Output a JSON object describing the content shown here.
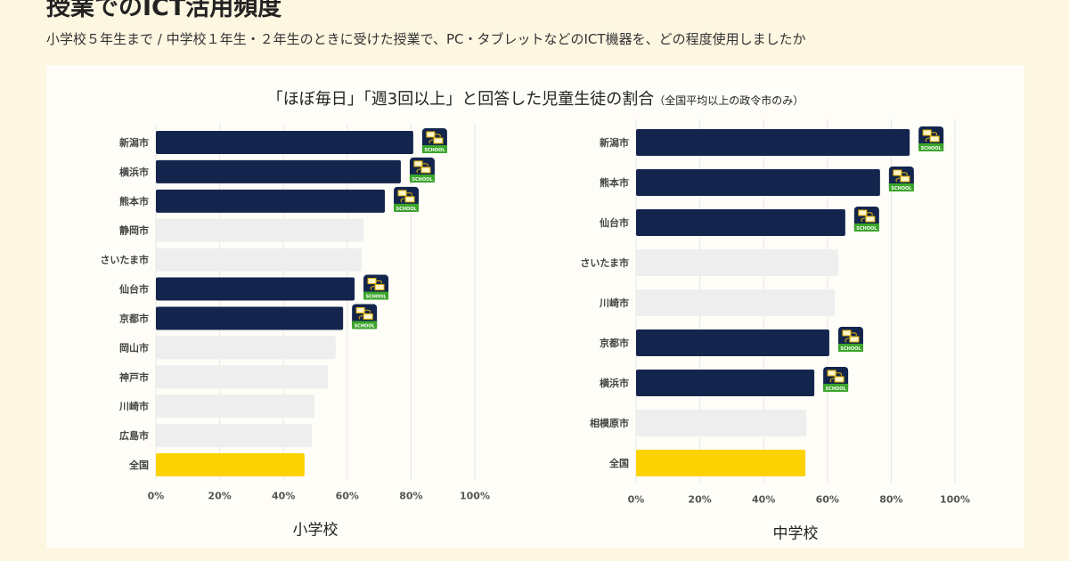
{
  "header": {
    "title": "授業でのICT活用頻度",
    "subtitle": "小学校５年生まで / 中学校１年生・２年生のときに受けた授業で、PC・タブレットなどのICT機器を、どの程度使用しましたか"
  },
  "colors": {
    "highlight": "#14254d",
    "other": "#eeeeee",
    "national": "#fcd200",
    "background": "#fdf6e1",
    "badge_green": "#3aa52a"
  },
  "icon": {
    "name": "school-ict-badge-icon",
    "text": "SCHOOL"
  },
  "chart_data": {
    "title": "「ほぼ毎日」「週3回以上」と回答した児童生徒の割合",
    "title_note": "（全国平均以上の政令市のみ）",
    "charts": [
      {
        "type": "bar",
        "orientation": "horizontal",
        "xlabel": "小学校",
        "xlim": [
          0,
          100
        ],
        "ticks": [
          "0%",
          "20%",
          "40%",
          "60%",
          "80%",
          "100%"
        ],
        "grid": true,
        "categories": [
          "新潟市",
          "横浜市",
          "熊本市",
          "静岡市",
          "さいたま市",
          "仙台市",
          "京都市",
          "岡山市",
          "神戸市",
          "川崎市",
          "広島市",
          "全国"
        ],
        "values": [
          80.7,
          76.8,
          71.8,
          65.1,
          64.5,
          62.3,
          58.7,
          56.4,
          53.9,
          49.7,
          48.9,
          46.6
        ],
        "highlighted": [
          true,
          true,
          true,
          false,
          false,
          true,
          true,
          false,
          false,
          false,
          false,
          false
        ]
      },
      {
        "type": "bar",
        "orientation": "horizontal",
        "xlabel": "中学校",
        "xlim": [
          0,
          100
        ],
        "ticks": [
          "0%",
          "20%",
          "40%",
          "60%",
          "80%",
          "100%"
        ],
        "grid": true,
        "categories": [
          "新潟市",
          "熊本市",
          "仙台市",
          "さいたま市",
          "川崎市",
          "京都市",
          "横浜市",
          "相模原市",
          "全国"
        ],
        "values": [
          85.8,
          76.5,
          65.6,
          63.4,
          62.3,
          60.6,
          55.9,
          53.4,
          53.1
        ],
        "highlighted": [
          true,
          true,
          true,
          false,
          false,
          true,
          true,
          false,
          false
        ]
      }
    ]
  }
}
